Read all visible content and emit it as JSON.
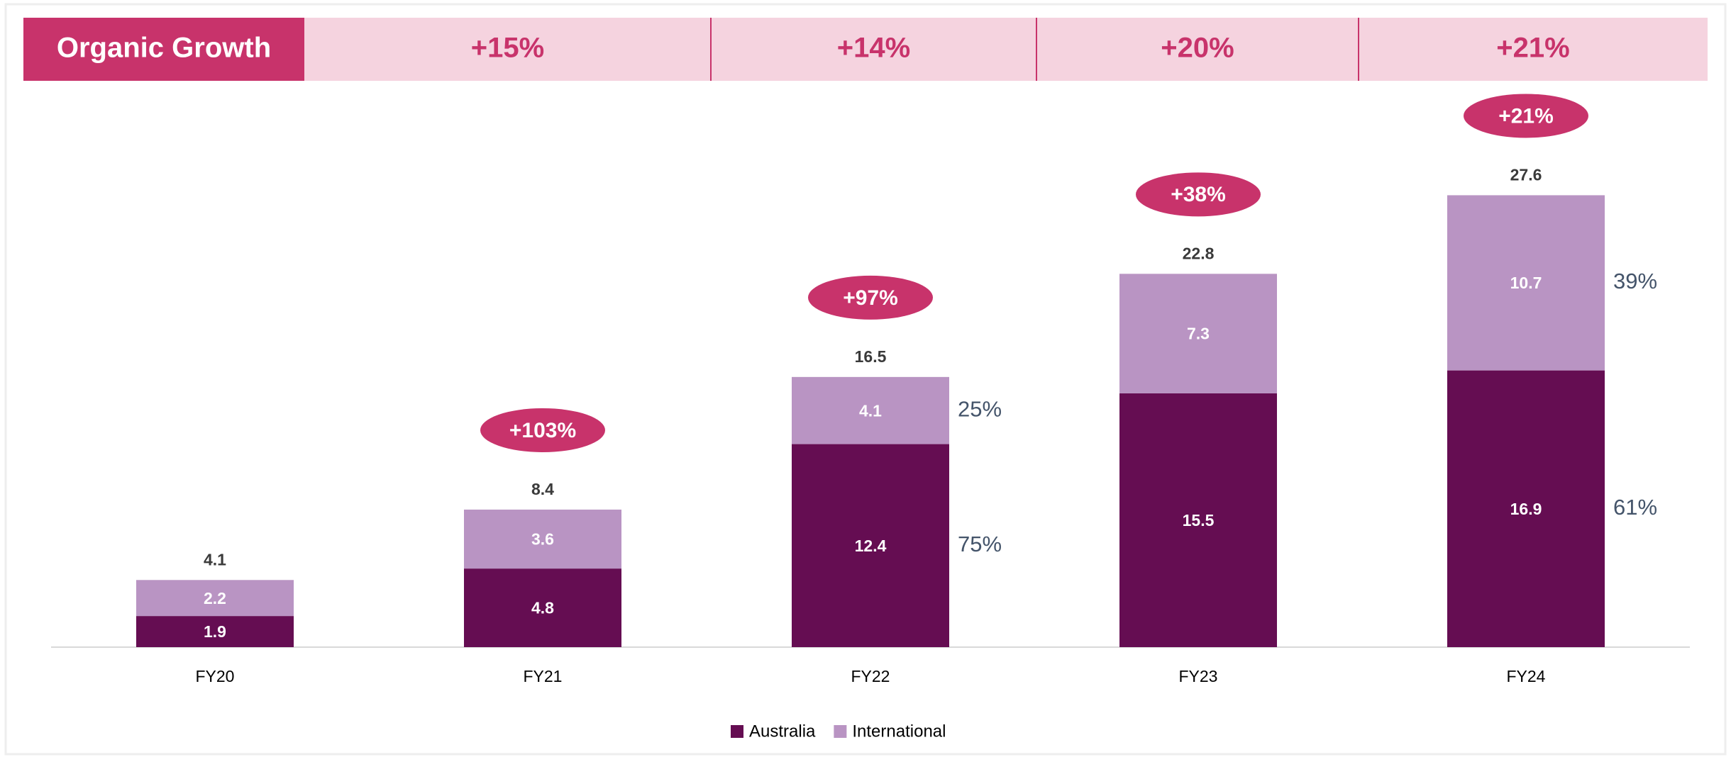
{
  "chart_data": {
    "type": "stacked_bar",
    "header": {
      "label": "Organic Growth",
      "values": [
        "+15%",
        "+14%",
        "+20%",
        "+21%"
      ]
    },
    "categories": [
      "FY20",
      "FY21",
      "FY22",
      "FY23",
      "FY24"
    ],
    "series": [
      {
        "name": "Australia",
        "color": "#650d52",
        "values": [
          1.9,
          4.8,
          12.4,
          15.5,
          16.9
        ],
        "share_labels": [
          null,
          null,
          "75%",
          null,
          "61%"
        ]
      },
      {
        "name": "International",
        "color": "#b994c3",
        "values": [
          2.2,
          3.6,
          4.1,
          7.3,
          10.7
        ],
        "share_labels": [
          null,
          null,
          "25%",
          null,
          "39%"
        ]
      }
    ],
    "totals": [
      4.1,
      8.4,
      16.5,
      22.8,
      27.6
    ],
    "growth_labels": [
      null,
      "+103%",
      "+97%",
      "+38%",
      "+21%"
    ],
    "ylim": [
      0,
      30
    ],
    "legend": "bottom"
  }
}
